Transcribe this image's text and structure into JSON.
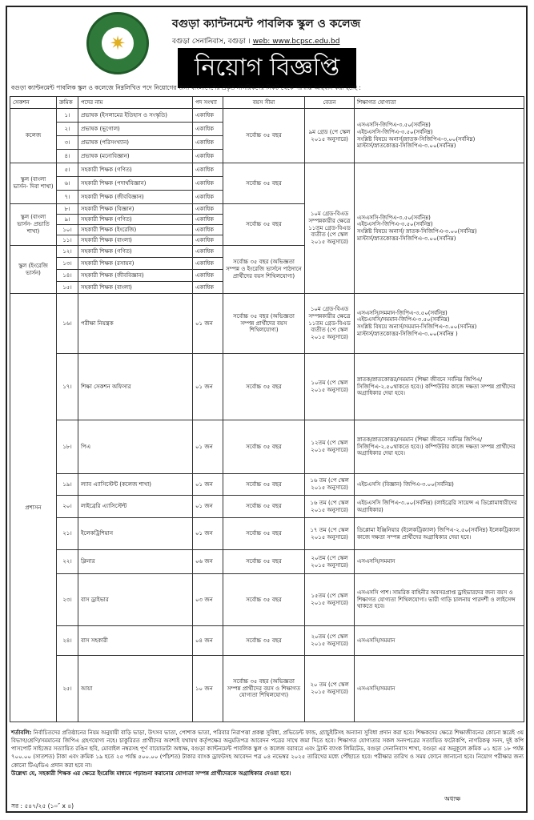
{
  "header": {
    "title": "বগুড়া ক্যান্টনমেন্ট পাবলিক স্কুল ও কলেজ",
    "address": "বগুড়া সেনানিবাস, বগুড়া ।",
    "web": "web: www.bcpsc.edu.bd",
    "banner": "নিয়োগ বিজ্ঞপ্তি",
    "logo_text": "১৯৭৯"
  },
  "intro": "বগুড়া ক্যান্টনমেন্ট পাবলিক স্কুল ও কলেজে নিম্নলিখিত পদে নিয়োগের জন্য বাংলাদেশের প্রকৃত নাগরিকদের নিকট থেকে দরখাস্ত আহবান করা হচ্ছে :",
  "columns": [
    "সেকশন",
    "ক্রমিক",
    "পদের নাম",
    "পদ সংখ্যা",
    "বয়স সীমা",
    "বেতন",
    "শিক্ষাগত যোগ্যতা"
  ],
  "sections": [
    "কলেজ",
    "স্কুল (বাংলা ভার্সন- দিবা শাখা)",
    "স্কুল (বাংলা ভার্সন- প্রভাতি শাখা)",
    "স্কুল (ইংরেজি ভার্সন)",
    "প্রশাসন"
  ],
  "rows": [
    {
      "sl": "১।",
      "post": "প্রভাষক (ইসলামের ইতিহাস ও সংস্কৃতি)",
      "count": "একাধিক"
    },
    {
      "sl": "২।",
      "post": "প্রভাষক (ভূগোল)",
      "count": "একাধিক"
    },
    {
      "sl": "৩।",
      "post": "প্রভাষক (পরিসংখ্যান)",
      "count": "একাধিক"
    },
    {
      "sl": "৪।",
      "post": "প্রভাষক (মনোবিজ্ঞান)",
      "count": "একাধিক"
    },
    {
      "sl": "৫।",
      "post": "সহকারী শিক্ষক (গণিত)",
      "count": "একাধিক"
    },
    {
      "sl": "৬।",
      "post": "সহকারী শিক্ষক (পদার্থবিজ্ঞান)",
      "count": "একাধিক"
    },
    {
      "sl": "৭।",
      "post": "সহকারী শিক্ষক (জীববিজ্ঞান)",
      "count": "একাধিক"
    },
    {
      "sl": "৮।",
      "post": "সহকারী শিক্ষক (বিজ্ঞান)",
      "count": "একাধিক"
    },
    {
      "sl": "৯।",
      "post": "সহকারী শিক্ষক (গণিত)",
      "count": "একাধিক"
    },
    {
      "sl": "১০।",
      "post": "সহকারী শিক্ষক (ইংরেজি)",
      "count": "একাধিক"
    },
    {
      "sl": "১১।",
      "post": "সহকারী শিক্ষক (বাংলা)",
      "count": "একাধিক"
    },
    {
      "sl": "১২।",
      "post": "সহকারী শিক্ষক (গণিত)",
      "count": "একাধিক"
    },
    {
      "sl": "১৩।",
      "post": "সহকারী শিক্ষক (রসায়ন)",
      "count": "একাধিক"
    },
    {
      "sl": "১৪।",
      "post": "সহকারী শিক্ষক (জীববিজ্ঞান)",
      "count": "একাধিক"
    },
    {
      "sl": "১৫।",
      "post": "সহকারী শিক্ষক (বাংলা)",
      "count": "একাধিক"
    },
    {
      "sl": "১৬।",
      "post": "পরীক্ষা নিয়ন্ত্রক",
      "count": "০১ জন"
    },
    {
      "sl": "১৭।",
      "post": "শিক্ষা সেকশন অফিসার",
      "count": "০১ জন"
    },
    {
      "sl": "১৮।",
      "post": "পিএ",
      "count": "০১ জন"
    },
    {
      "sl": "১৯।",
      "post": "ল্যাব এ্যাসিস্টেন্ট (কলেজ শাখা)",
      "count": "০১ জন"
    },
    {
      "sl": "২০।",
      "post": "লাইব্রেরি এ্যাসিস্টেন্ট",
      "count": "০১ জন"
    },
    {
      "sl": "২১।",
      "post": "ইলেকট্রিশিয়ান",
      "count": "০১ জন"
    },
    {
      "sl": "২২।",
      "post": "ক্লিনার",
      "count": "০৬ জন"
    },
    {
      "sl": "২৩।",
      "post": "বাস ড্রাইভার",
      "count": "০৩ জন"
    },
    {
      "sl": "২৪।",
      "post": "বাস সহকারী",
      "count": "০৪ জন"
    },
    {
      "sl": "২৫।",
      "post": "আয়া",
      "count": "১০ জন"
    }
  ],
  "age": {
    "basic": "সর্বোচ্চ ৩৫ বছর",
    "english": "সর্বোচ্চ ৩৫ বছর (অভিজ্ঞতা সম্পন্ন ও ইংরেজি ভার্সনে পাঠদানে প্রার্থীদের বয়স শিথিলযোগ্য)",
    "exam": "সর্বোচ্চ ৩৫ বছর (অভিজ্ঞতা সম্পন্ন প্রার্থীদের বয়স শিথিলযোগ্য)",
    "aya": "সর্বোচ্চ ৩৫ বছর (অভিজ্ঞতা সম্পন্ন প্রার্থীদের বয়স ও শিক্ষাগত যোগ্যতা শিথিলযোগ্য)"
  },
  "salary": {
    "g9": "৯ম গ্রেড (পে স্কেল ২০১৫ অনুসারে)",
    "teacher": "১০ম গ্রেড-বিএড সম্পন্নকারীর ক্ষেত্রে ১১তম গ্রেড-বিএড ব্যতীত (পে স্কেল ২০১৫ অনুসারে)",
    "g10": "১০তম (পে স্কেল ২০১৫ অনুসারে)",
    "g12": "১২তম (পে স্কেল ২০১৫ অনুসারে)",
    "g16": "১৬ তম (পে স্কেল ২০১৫ অনুসারে)",
    "g17": "১৭ তম (পে স্কেল ২০১৫ অনুসারে)",
    "g20": "২০তম (পে স্কেল ২০১৫ অনুসারে)",
    "g15": "১৫তম (পে স্কেল ২০১৫ অনুসারে)",
    "g20b": "২০ তম (পে স্কেল ২০১৫ অনুসারে)"
  },
  "qual": {
    "college": [
      "এসএসসি-জিপিএ-৩.৫০(সর্বনিম্ন)",
      "এইচএসসি-জিপিএ-৩.৫০(সর্বনিম্ন)",
      "সংশ্লিষ্ট বিষয়ে অনার্স/স্নাতক-সিজিপিএ-৩.০০(সর্বনিম্ন)",
      "মাস্টার্স/স্নাতকোত্তর-সিজিপিএ-৩.০০(সর্বনিম্ন)"
    ],
    "school": [
      "এসএসসি-জিপিএ-৩.৫০(সর্বনিম্ন)",
      "এইচএসসি-জিপিএ-৩.৫০(সর্বনিম্ন)",
      "সংশ্লিষ্ট বিষয়ে অনার্স/ স্নাতক-সিজিপিএ-৩.০০(সর্বনিম্ন)",
      "মাস্টার্স/স্নাতকোত্তর-সিজিপিএ-৩.০০(সর্বনিম্ন)"
    ],
    "exam": [
      "এসএসসি/সমমান-জিপিএ-৩.৫০(সর্বনিম্ন)",
      "এইচএসসি/সমমান-জিপিএ-৩.৫০(সর্বনিম্ন)",
      "সংশ্লিষ্ট বিষয়ে অনার্স/সমমান-সিজিপিএ-৩.০০(সর্বনিম্ন)",
      "মাস্টার্স/স্নাতকোত্তর-সিজিপিএ-৩.০০(সর্বনিম্ন )"
    ],
    "officer": "স্নাতক/স্নাতকোত্তর/সমমান (শিক্ষা জীবনে সর্বনিম্ন জিপিএ/সিজিপিএ-২.৫০থাকতে হবে।) কম্পিউটার কাজে দক্ষতা সম্পন্ন প্রার্থীদের অগ্রাধিকার দেয়া হবে।",
    "lab": "এইচএসসি (বিজ্ঞান) জিপিএ-৩.০০(সর্বনিম্ন)",
    "library": "এইচএসসি জিপিএ-৩.০০(সর্বনিম্ন) (লাইব্রেরি সায়েন্স এ ডিপ্লোমাধারীদের অগ্রাধিকার)",
    "electrician": "ডিপ্লোমা ইঞ্জিনিয়ার (ইলেকট্রিক্যাল) জিপিএ-২.৫০(সর্বনিম্ন) ইলেকট্রিক্যাল কাজে দক্ষতা সম্পন্ন প্রার্থীদের অগ্রাধিকার দেয়া হবে।",
    "ssc": "এসএসসি/সমমান",
    "driver": "এসএসসি পাশ। সামরিক বাহিনীর অবসরপ্রাপ্ত ড্রাইভারদের জন্য বয়স ও শিক্ষাগত যোগ্যতা শিথিলযোগ্য। ভারী গাড়ি চালনায় পারদর্শী ও লাইসেন্স থাকতে হবে।"
  },
  "notes": {
    "label": "শর্তাবলি:",
    "body": " নির্বাচিতদের প্রতিষ্ঠানের নিয়ম অনুযায়ী বাড়ি ভাড়া, উৎসব ভাতা, পোশাক ভাতা, পরিবার নিরাপত্তা প্রকল্প সুবিধা, প্রভিডেন্ট ফান্ড, গ্র্যাচুইটিসহ অন্যান্য সুবিধা প্রদান করা হবে। শিক্ষকদের ক্ষেত্রে শিক্ষাজীবনের কোনো স্তরেই ৩য় বিভাগ/শ্রেণি/সমমানের জিপিএ গ্রহণযোগ্য নহে। চাকুরিরত প্রার্থীদের অবশ্যই যথাযথ কর্তৃপক্ষের অনুমতিপত্র আবেদন পত্রের সাথে জমা দিতে হবে। শিক্ষাগত যোগ্যতার সকল সনদপত্রের সত্যায়িত ফটোকপি, নাগরিকত্ব সনদ, দুই কপি পাসপোর্ট সাইজের সত্যায়িত রঙিন ছবি, মোবাইল নম্বরসহ পূর্ণ বায়োডাটা অধ্যক্ষ, বগুড়া ক্যান্টনমেন্ট পাবলিক স্কুল ও কলেজ বরাবরে এবং ট্রাস্ট ব্যাংক লিমিটেড, বগুড়া সেনানিবাস শাখা, বগুড়া এর অনুকূলে ক্রমিক ০১ হতে ১৮ পর্যন্ত ৭০০.০০ (সাতশত) টাকা এবং ক্রমিক ১৯ হতে ২৫ পর্যন্ত ৫০০.০০ (পাঁচশত) টাকার ব্যাংক ড্রাফটসহ আবেদন পত্র ০৪ নভেম্বর ২০২৫ তারিখের মধ্যে পৌঁছাতে হবে। পরীক্ষার তারিখ ও সময় ফোনে জানানো হবে। নিয়োগ পরীক্ষার জন্য কোনো টিএ/ডিএ প্রদান করা হবে না।",
    "emphasis": "উল্লেখ্য যে, সহকারী শিক্ষক এর ক্ষেত্রে ইংরেজি মাধ্যমে পড়াশুনা করানোর যোগ্যতা সম্পন্ন প্রার্থীদেরকে অগ্রাধিকার দেওয়া হবে।"
  },
  "signature": "অধ্যক্ষ",
  "ref": "সর : ৫৪৭/২৫ (১০″ x ৪)",
  "colors": {
    "logo_green": "#2f7a3a",
    "banner_bg": "#000000"
  }
}
